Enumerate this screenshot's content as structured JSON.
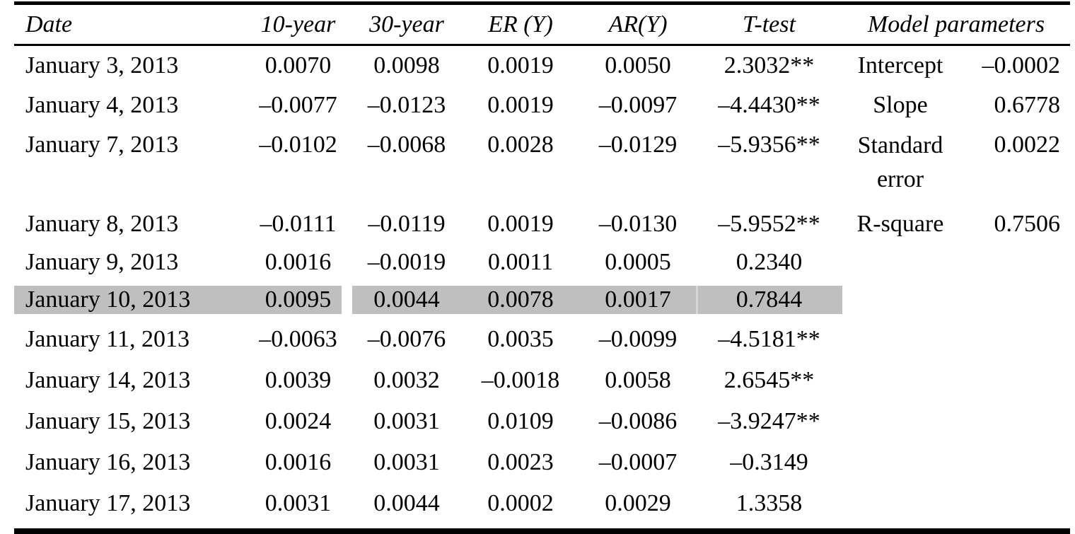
{
  "table": {
    "highlight_color": "#bfbfbf",
    "columns": [
      "Date",
      "10-year",
      "30-year",
      "ER (Y)",
      "AR(Y)",
      "T-test",
      "Model parameters"
    ],
    "rows": [
      {
        "date": "January 3, 2013",
        "y10": "0.0070",
        "y30": "0.0098",
        "er": "0.0019",
        "ar": "0.0050",
        "ttest": "2.3032**",
        "param": "Intercept",
        "pval": "–0.0002",
        "highlighted": false
      },
      {
        "date": "January 4, 2013",
        "y10": "–0.0077",
        "y30": "–0.0123",
        "er": "0.0019",
        "ar": "–0.0097",
        "ttest": "–4.4430**",
        "param": "Slope",
        "pval": "0.6778",
        "highlighted": false
      },
      {
        "date": "January 7, 2013",
        "y10": "–0.0102",
        "y30": "–0.0068",
        "er": "0.0028",
        "ar": "–0.0129",
        "ttest": "–5.9356**",
        "param": "Standard error",
        "pval": "0.0022",
        "highlighted": false
      },
      {
        "date": "January 8, 2013",
        "y10": "–0.0111",
        "y30": "–0.0119",
        "er": "0.0019",
        "ar": "–0.0130",
        "ttest": "–5.9552**",
        "param": "R-square",
        "pval": "0.7506",
        "highlighted": false
      },
      {
        "date": "January 9, 2013",
        "y10": "0.0016",
        "y30": "–0.0019",
        "er": "0.0011",
        "ar": "0.0005",
        "ttest": "0.2340",
        "param": "",
        "pval": "",
        "highlighted": false
      },
      {
        "date": "January 10, 2013",
        "y10": "0.0095",
        "y30": "0.0044",
        "er": "0.0078",
        "ar": "0.0017",
        "ttest": "0.7844",
        "param": "",
        "pval": "",
        "highlighted": true
      },
      {
        "date": "January 11, 2013",
        "y10": "–0.0063",
        "y30": "–0.0076",
        "er": "0.0035",
        "ar": "–0.0099",
        "ttest": "–4.5181**",
        "param": "",
        "pval": "",
        "highlighted": false
      },
      {
        "date": "January 14, 2013",
        "y10": "0.0039",
        "y30": "0.0032",
        "er": "–0.0018",
        "ar": "0.0058",
        "ttest": "2.6545**",
        "param": "",
        "pval": "",
        "highlighted": false
      },
      {
        "date": "January 15, 2013",
        "y10": "0.0024",
        "y30": "0.0031",
        "er": "0.0109",
        "ar": "–0.0086",
        "ttest": "–3.9247**",
        "param": "",
        "pval": "",
        "highlighted": false
      },
      {
        "date": "January 16, 2013",
        "y10": "0.0016",
        "y30": "0.0031",
        "er": "0.0023",
        "ar": "–0.0007",
        "ttest": "–0.3149",
        "param": "",
        "pval": "",
        "highlighted": false
      },
      {
        "date": "January 17, 2013",
        "y10": "0.0031",
        "y30": "0.0044",
        "er": "0.0002",
        "ar": "0.0029",
        "ttest": "1.3358",
        "param": "",
        "pval": "",
        "highlighted": false
      }
    ]
  }
}
